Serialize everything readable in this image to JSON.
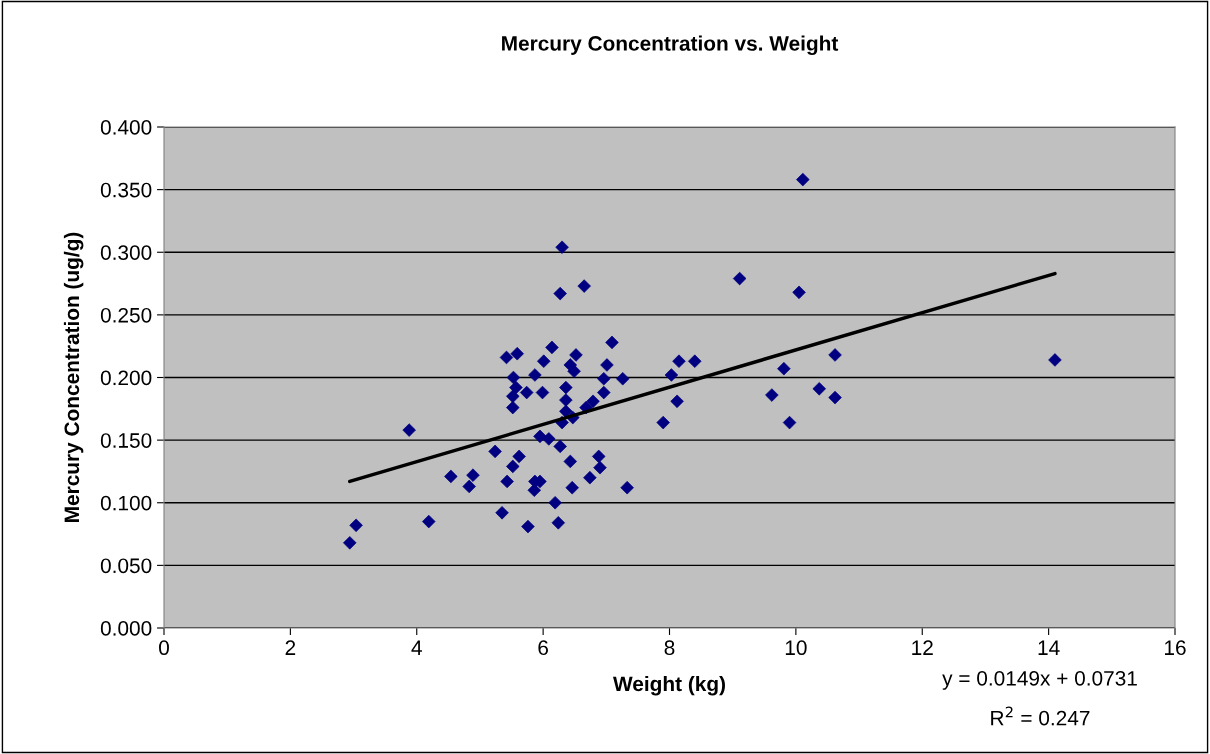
{
  "chart_data": {
    "type": "scatter",
    "title": "Mercury Concentration vs. Weight",
    "xlabel": "Weight (kg)",
    "ylabel": "Mercury Concentration (ug/g)",
    "xlim": [
      0,
      16
    ],
    "xticks": [
      0,
      2,
      4,
      6,
      8,
      10,
      12,
      14,
      16
    ],
    "ylim": [
      0,
      0.4
    ],
    "yticks": [
      {
        "value": 0,
        "label": "0.000"
      },
      {
        "value": 0.05,
        "label": "0.050"
      },
      {
        "value": 0.1,
        "label": "0.100"
      },
      {
        "value": 0.15,
        "label": "0.150"
      },
      {
        "value": 0.2,
        "label": "0.200"
      },
      {
        "value": 0.25,
        "label": "0.250"
      },
      {
        "value": 0.3,
        "label": "0.300"
      },
      {
        "value": 0.35,
        "label": "0.350"
      },
      {
        "value": 0.4,
        "label": "0.400"
      }
    ],
    "grid": "y",
    "legend": false,
    "marker": "diamond",
    "series": [
      {
        "color": "#000080",
        "x": [
          2.94,
          3.04,
          3.88,
          4.19,
          4.54,
          4.83,
          4.89,
          5.24,
          5.35,
          5.43,
          5.42,
          5.59,
          5.53,
          5.57,
          5.52,
          5.52,
          5.74,
          5.99,
          5.87,
          6.01,
          6.14,
          6.3,
          6.27,
          6.65,
          6.52,
          6.43,
          6.49,
          6.36,
          6.36,
          6.36,
          6.47,
          6.3,
          6.68,
          6.79,
          7.09,
          7.01,
          6.96,
          6.96,
          7.26,
          5.62,
          5.52,
          5.95,
          6.09,
          6.27,
          6.43,
          6.88,
          6.9,
          6.74,
          6.46,
          7.33,
          5.87,
          5.95,
          5.86,
          6.19,
          6.24,
          5.76,
          8.03,
          8.15,
          8.4,
          8.12,
          7.9,
          9.11,
          10.05,
          10.11,
          9.81,
          9.62,
          10.37,
          10.62,
          10.62,
          9.9,
          14.1
        ],
        "values": [
          0.068,
          0.082,
          0.158,
          0.085,
          0.121,
          0.113,
          0.122,
          0.141,
          0.092,
          0.117,
          0.216,
          0.219,
          0.2,
          0.192,
          0.185,
          0.176,
          0.188,
          0.188,
          0.202,
          0.213,
          0.224,
          0.304,
          0.267,
          0.273,
          0.218,
          0.21,
          0.205,
          0.192,
          0.182,
          0.173,
          0.168,
          0.164,
          0.176,
          0.181,
          0.228,
          0.21,
          0.199,
          0.188,
          0.199,
          0.137,
          0.129,
          0.153,
          0.151,
          0.145,
          0.133,
          0.137,
          0.128,
          0.12,
          0.112,
          0.112,
          0.117,
          0.117,
          0.11,
          0.1,
          0.084,
          0.081,
          0.202,
          0.213,
          0.213,
          0.181,
          0.164,
          0.279,
          0.268,
          0.358,
          0.207,
          0.186,
          0.191,
          0.218,
          0.184,
          0.164,
          0.214
        ]
      },
      {
        "type": "line",
        "color": "#000000",
        "marker": "none",
        "line_style": "solid",
        "x": [
          2.94,
          14.1
        ],
        "values": [
          0.117,
          0.283
        ]
      }
    ],
    "annotations": [
      "y = 0.0149x + 0.0731",
      "R$^{2}$ = 0.247"
    ]
  }
}
